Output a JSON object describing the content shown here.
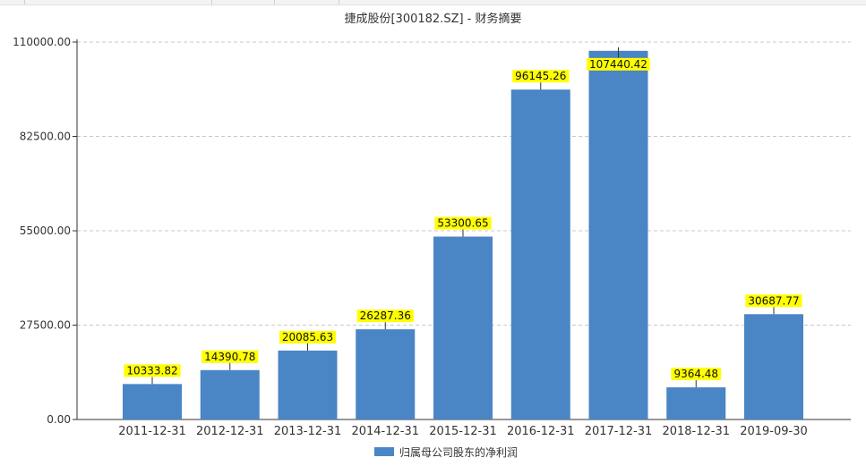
{
  "chart_data": {
    "type": "bar",
    "title": "捷成股份[300182.SZ] - 财务摘要",
    "xlabel": "",
    "ylabel": "",
    "categories": [
      "2011-12-31",
      "2012-12-31",
      "2013-12-31",
      "2014-12-31",
      "2015-12-31",
      "2016-12-31",
      "2017-12-31",
      "2018-12-31",
      "2019-09-30"
    ],
    "series": [
      {
        "name": "归属母公司股东的净利润",
        "values": [
          10333.82,
          14390.78,
          20085.63,
          26287.36,
          53300.65,
          96145.26,
          107440.42,
          9364.48,
          30687.77
        ],
        "labels": [
          "10333.82",
          "14390.78",
          "20085.63",
          "26287.36",
          "53300.65",
          "96145.26",
          "107440.42",
          "9364.48",
          "30687.77"
        ],
        "color": "#4a85c5"
      }
    ],
    "ylim": [
      0,
      110000
    ],
    "yticks": [
      0,
      27500,
      55000,
      82500,
      110000
    ],
    "ytick_labels": [
      "0.00",
      "27500.00",
      "55000.00",
      "82500.00",
      "110000.00"
    ],
    "grid": true,
    "legend_position": "bottom-center",
    "label_bg_color": "#ffff00"
  }
}
